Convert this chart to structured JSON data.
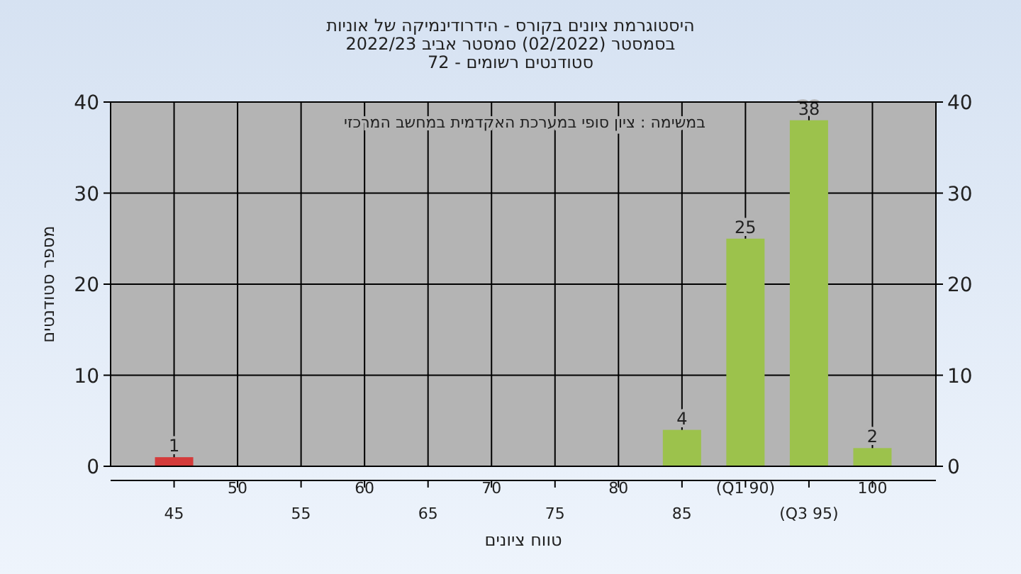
{
  "chart_data": {
    "type": "bar",
    "title": "היסטוגרמת ציונים בקורס - הידרודינמיקה של אוניות",
    "subtitle": "בסמסטר  (02/2022)  סמסטר אביב 2022/23\nסטודנטים רשומים - 72",
    "xlabel": "טווח ציונים",
    "ylabel": "מספר סטודנטים",
    "annotations": [
      "במשימה : ציון סופי במערכת האקדמית במחשב המרכזי"
    ],
    "categories": [
      "45",
      "50",
      "55",
      "60",
      "65",
      "70",
      "75",
      "80",
      "85",
      "(Q1 90)",
      "(Q3 95)",
      "100"
    ],
    "values": [
      1,
      0,
      0,
      0,
      0,
      0,
      0,
      0,
      4,
      25,
      38,
      2
    ],
    "colors": [
      "#d43b3b",
      "#9cc24c",
      "#9cc24c",
      "#9cc24c",
      "#9cc24c",
      "#9cc24c",
      "#9cc24c",
      "#9cc24c",
      "#9cc24c",
      "#9cc24c",
      "#9cc24c",
      "#9cc24c"
    ],
    "value_labels": [
      "1",
      null,
      null,
      null,
      null,
      null,
      null,
      null,
      "4",
      "25",
      "38",
      "2"
    ],
    "ylim": [
      0,
      40
    ],
    "yticks": [
      0,
      10,
      20,
      30,
      40
    ],
    "y2lim": [
      0,
      40
    ],
    "y2ticks": [
      0,
      10,
      20,
      30,
      40
    ],
    "grid": true
  }
}
